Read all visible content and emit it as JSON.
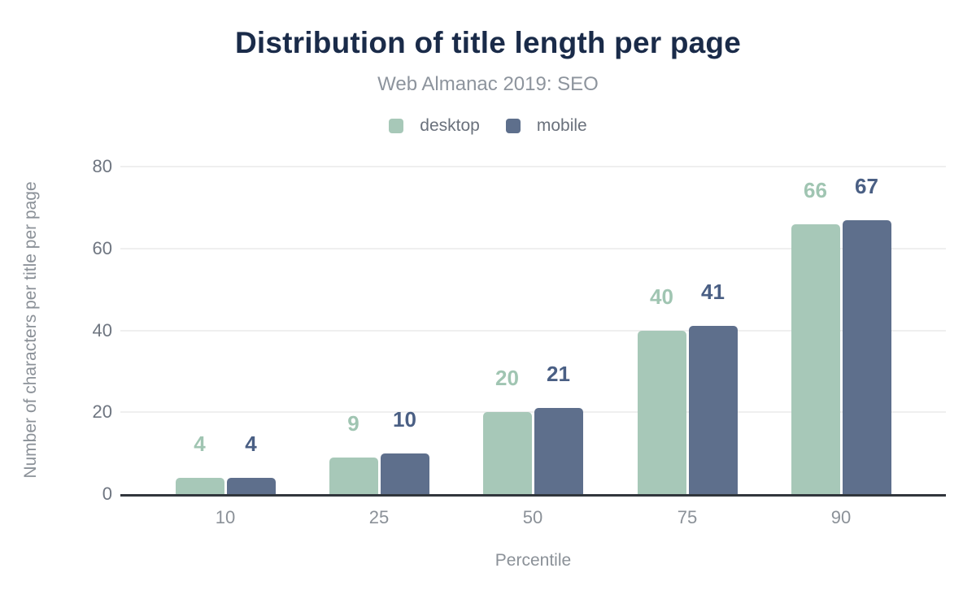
{
  "header": {
    "title": "Distribution of title length per page",
    "subtitle": "Web Almanac 2019: SEO"
  },
  "chart_data": {
    "type": "bar",
    "title": "Distribution of title length per page",
    "subtitle": "Web Almanac 2019: SEO",
    "xlabel": "Percentile",
    "ylabel": "Number of characters per title per page",
    "categories": [
      "10",
      "25",
      "50",
      "75",
      "90"
    ],
    "series": [
      {
        "name": "desktop",
        "color": "#a7c8b8",
        "label_color": "#a0c5b2",
        "values": [
          4,
          9,
          20,
          40,
          66
        ]
      },
      {
        "name": "mobile",
        "color": "#5e6f8c",
        "label_color": "#4a5f84",
        "values": [
          4,
          10,
          21,
          41,
          67
        ]
      }
    ],
    "ylim": [
      0,
      80
    ],
    "yticks": [
      0,
      20,
      40,
      60,
      80
    ],
    "grid": true,
    "legend_position": "top",
    "colors": {
      "title": "#1a2b49",
      "subtitle": "#8d949d",
      "axis_line": "#31363c",
      "gridline": "#efefef",
      "tick_text": "#6e7580"
    }
  }
}
